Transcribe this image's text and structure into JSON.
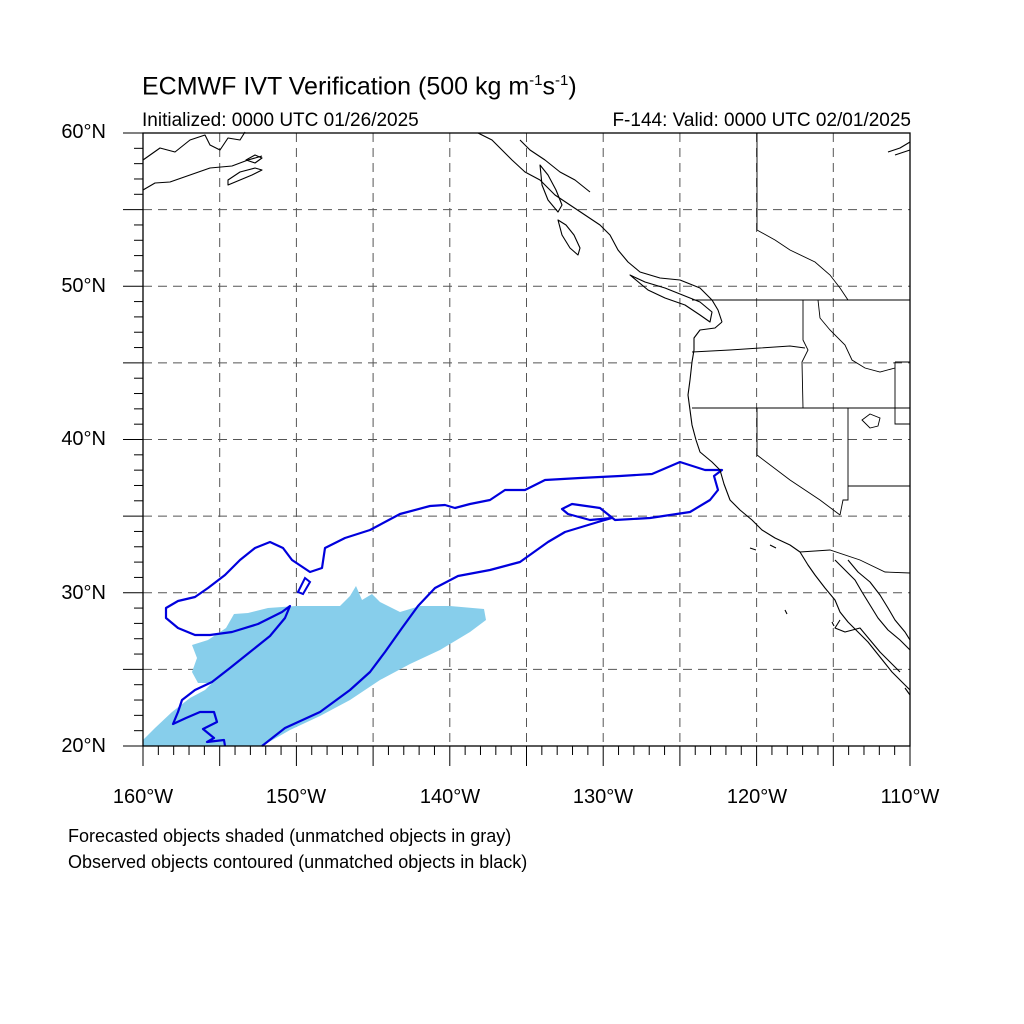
{
  "header": {
    "title_main": "ECMWF IVT Verification (500 kg m",
    "title_exp1": "-1",
    "title_mid": "s",
    "title_exp2": "-1",
    "title_end": ")",
    "initialized": "Initialized: 0000 UTC 01/26/2025",
    "valid": "F-144: Valid: 0000 UTC 02/01/2025"
  },
  "axes": {
    "lat_labels": [
      "60°N",
      "50°N",
      "40°N",
      "30°N",
      "20°N"
    ],
    "lon_labels": [
      "160°W",
      "150°W",
      "140°W",
      "130°W",
      "120°W",
      "110°W"
    ],
    "lat_range": [
      20,
      60
    ],
    "lon_range": [
      -160,
      -110
    ],
    "grid": "dashed every 5 degrees"
  },
  "notes": {
    "forecast": "Forecasted objects shaded (unmatched objects in gray)",
    "observed": "Observed objects contoured (unmatched objects in black)"
  },
  "colors": {
    "forecast_fill": "#87ceeb",
    "observed_contour": "#0000dd",
    "coastline": "#000000",
    "grid": "#555555"
  }
}
